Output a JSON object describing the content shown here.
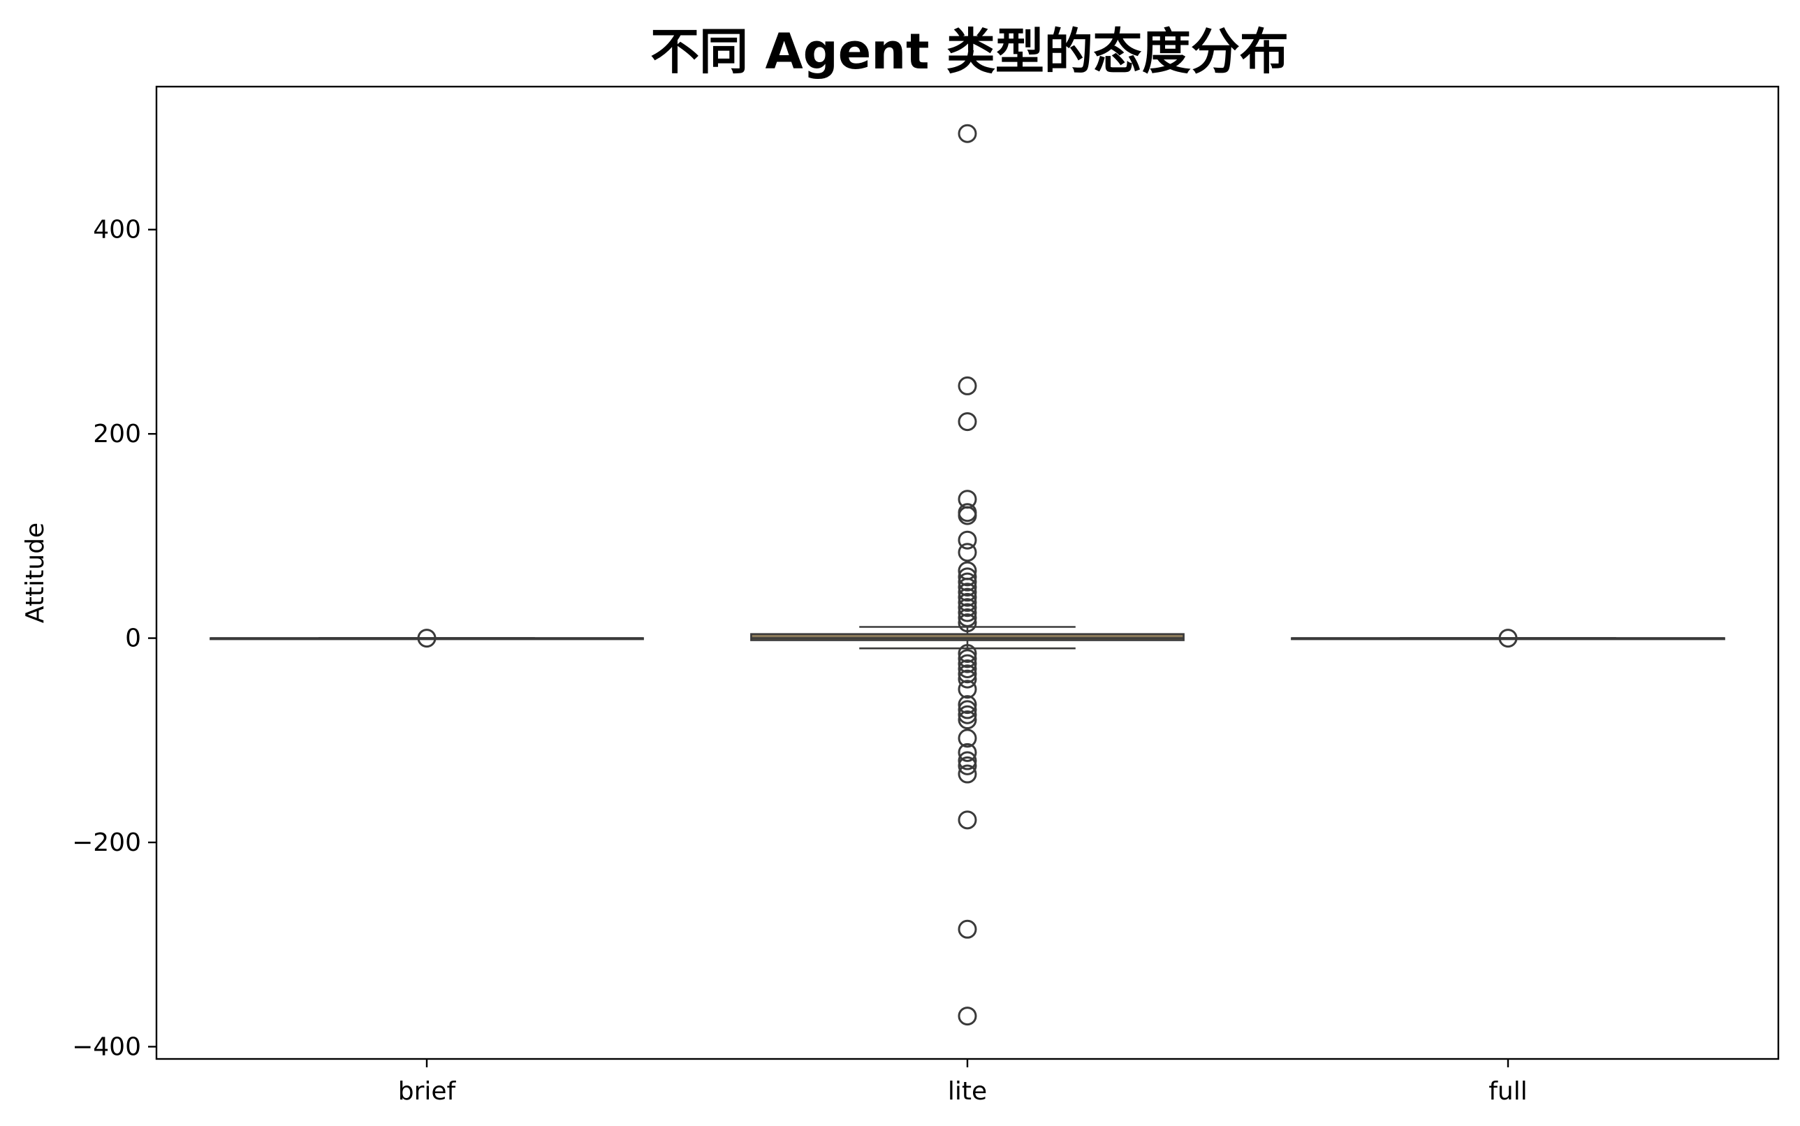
{
  "chart_data": {
    "type": "box",
    "title": "不同 Agent 类型的态度分布",
    "xlabel": "",
    "ylabel": "Attitude",
    "categories": [
      "brief",
      "lite",
      "full"
    ],
    "ylim": [
      -412,
      540
    ],
    "yticks": [
      -400,
      -200,
      0,
      200,
      400
    ],
    "ytick_labels": [
      "−400",
      "−200",
      "0",
      "200",
      "400"
    ],
    "grid": false,
    "legend": "none",
    "box_color": "#8c7b5a",
    "line_color": "#3a3a3a",
    "boxes": [
      {
        "category": "brief",
        "whisker_low": 0,
        "q1": 0,
        "median": 0,
        "q3": 0,
        "whisker_high": 0,
        "outliers": [
          0
        ]
      },
      {
        "category": "lite",
        "whisker_low": -10,
        "q1": -2,
        "median": 0,
        "q3": 4,
        "whisker_high": 11,
        "outliers": [
          494,
          247,
          212,
          136,
          123,
          120,
          96,
          84,
          66,
          60,
          55,
          50,
          45,
          40,
          35,
          30,
          25,
          20,
          15,
          -15,
          -20,
          -25,
          -30,
          -35,
          -40,
          -50,
          -65,
          -70,
          -75,
          -80,
          -98,
          -112,
          -120,
          -125,
          -133,
          -178,
          -285,
          -370
        ]
      },
      {
        "category": "full",
        "whisker_low": 0,
        "q1": 0,
        "median": 0,
        "q3": 0,
        "whisker_high": 0,
        "outliers": [
          0
        ]
      }
    ]
  }
}
